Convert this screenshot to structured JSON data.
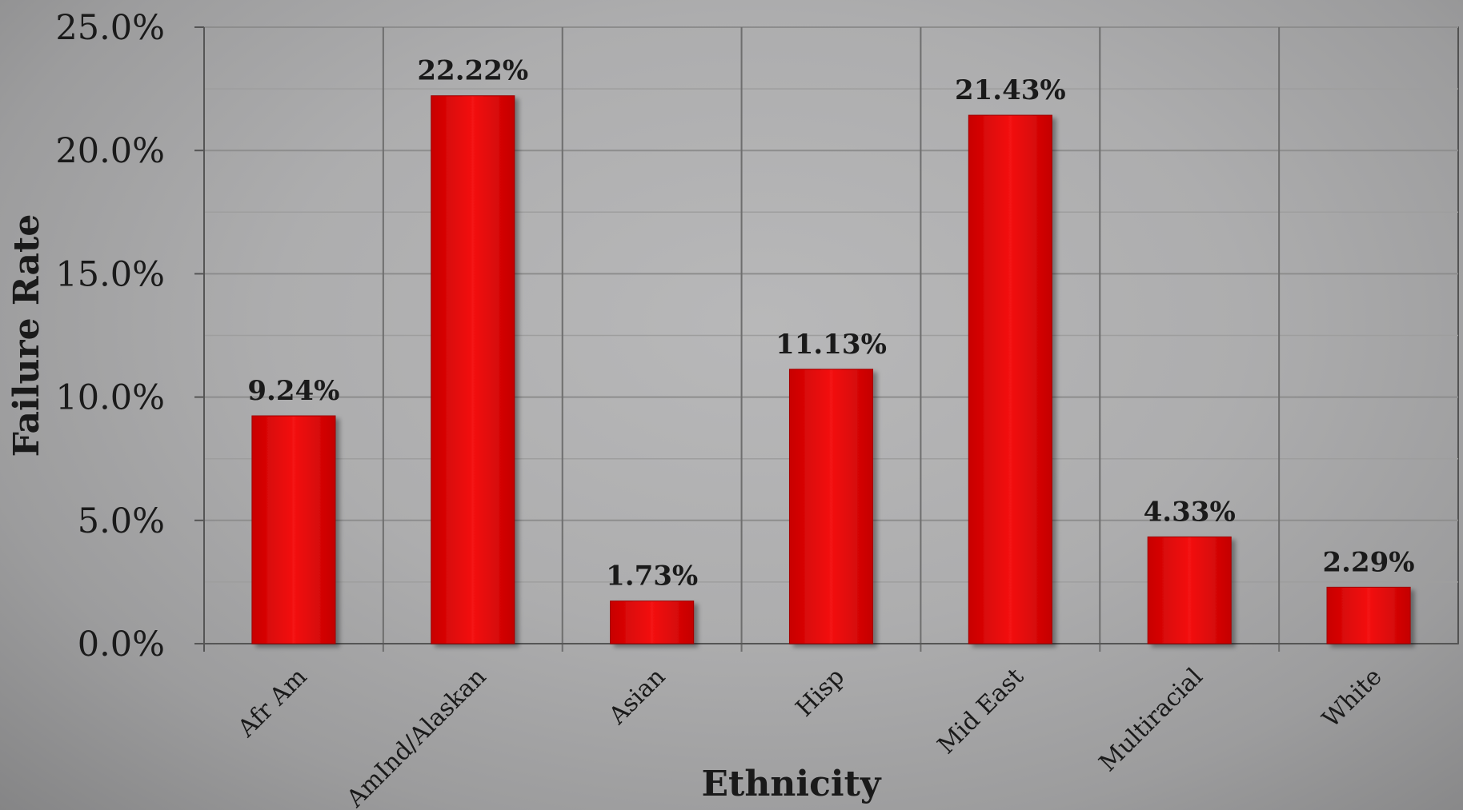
{
  "chart_data": {
    "type": "bar",
    "categories": [
      "Afr Am",
      "AmInd/Alaskan",
      "Asian",
      "Hisp",
      "Mid East",
      "Multiracial",
      "White"
    ],
    "values": [
      9.24,
      22.22,
      1.73,
      11.13,
      21.43,
      4.33,
      2.29
    ],
    "data_labels": [
      "9.24%",
      "22.22%",
      "1.73%",
      "11.13%",
      "21.43%",
      "4.33%",
      "2.29%"
    ],
    "xlabel": "Ethnicity",
    "ylabel": "Failure Rate",
    "ylim": [
      0,
      25
    ],
    "yticks": [
      0,
      5,
      10,
      15,
      20,
      25
    ],
    "ytick_labels": [
      "0.0%",
      "5.0%",
      "10.0%",
      "15.0%",
      "20.0%",
      "25.0%"
    ],
    "grid": true,
    "bar_color": "#e00000",
    "background_color": "#adadae"
  }
}
